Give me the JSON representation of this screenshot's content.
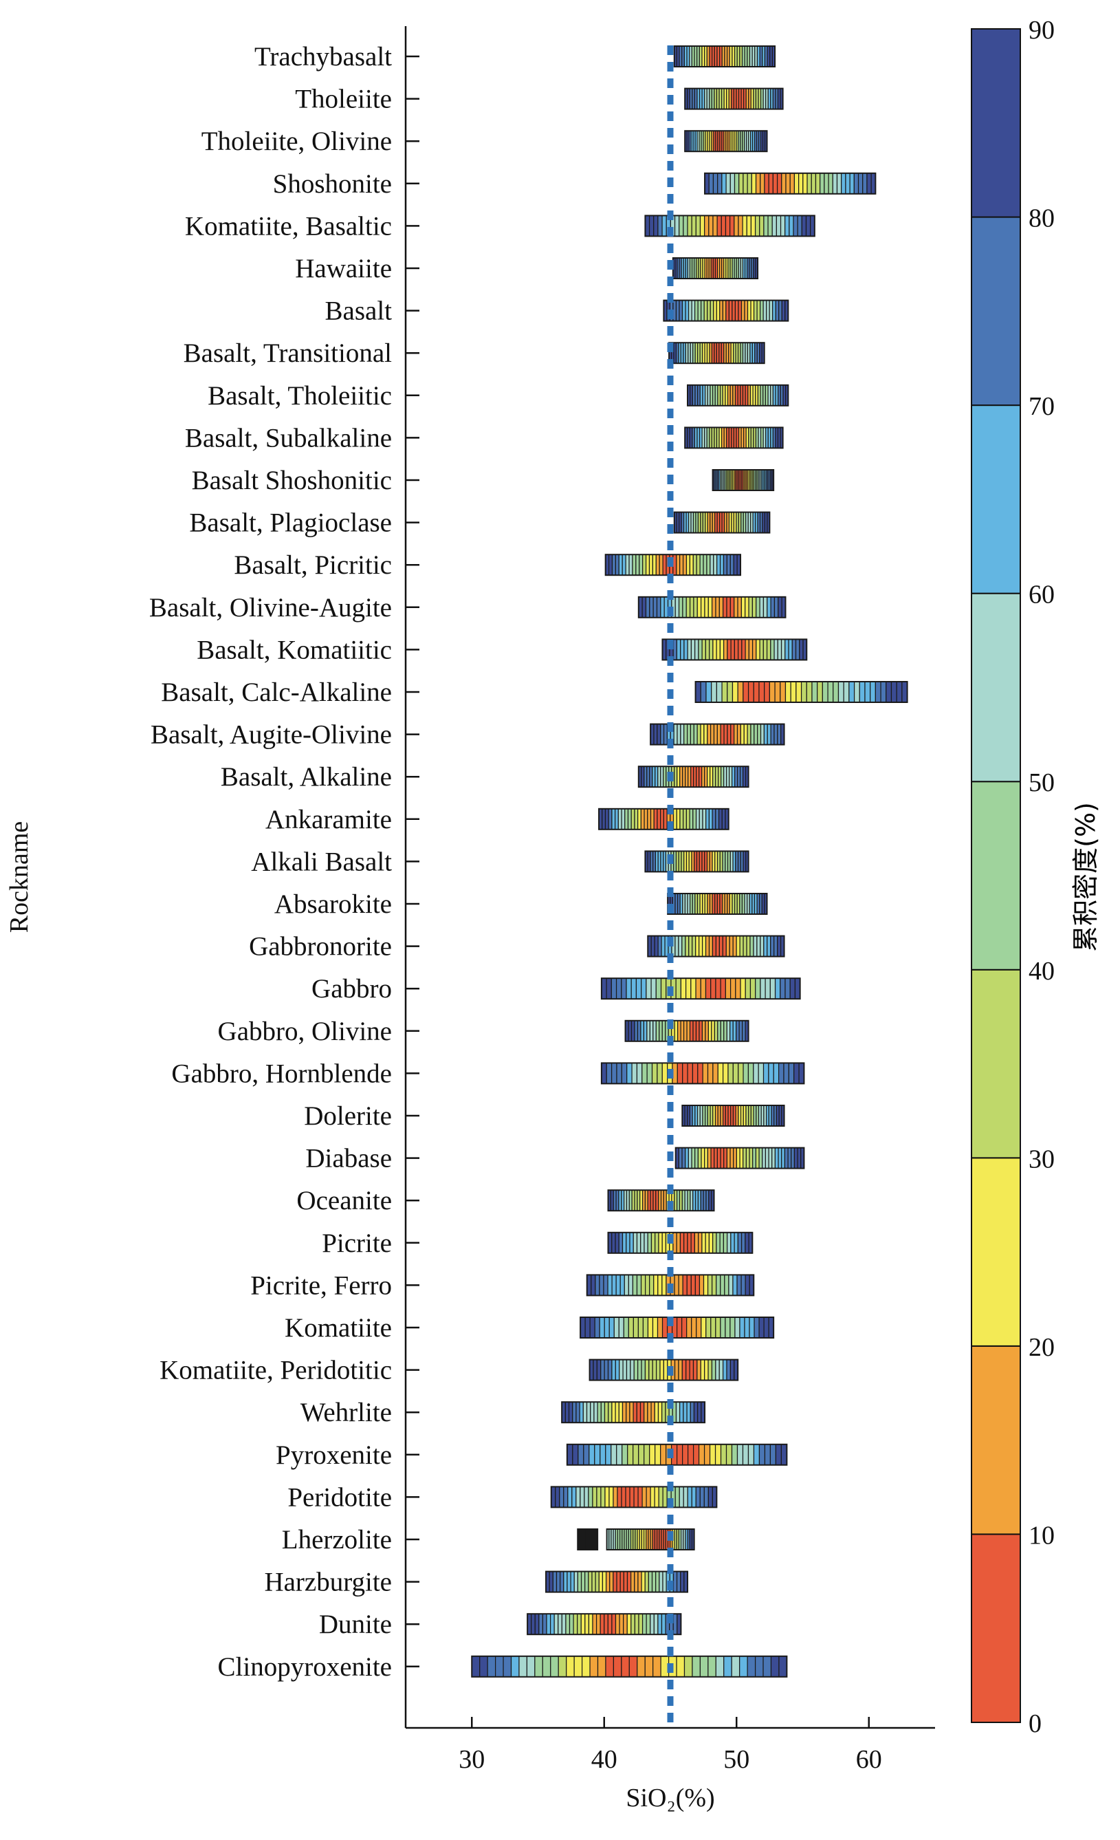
{
  "chart_data": {
    "type": "range-density",
    "xlabel": "SiO₂(%)",
    "ylabel": "Rockname",
    "colorbar_label": "累积密度(%)",
    "xlim": [
      25,
      65
    ],
    "x_ticks": [
      30,
      40,
      50,
      60
    ],
    "reference_line_x": 45,
    "colorbar_ticks": [
      0,
      10,
      20,
      30,
      40,
      50,
      60,
      70,
      80,
      90
    ],
    "colorbar_colors": [
      "#e85a3a",
      "#f2a33a",
      "#f3ea55",
      "#bfd86a",
      "#9fd39c",
      "#a8d8cf",
      "#63b6e2",
      "#4a76b5",
      "#3b4c94"
    ],
    "rows": [
      {
        "name": "Trachybasalt",
        "min": 45.3,
        "max": 52.9,
        "mode": 48.5
      },
      {
        "name": "Tholeiite",
        "min": 46.1,
        "max": 53.5,
        "mode": 50.3
      },
      {
        "name": "Tholeiite, Olivine",
        "min": 46.1,
        "max": 52.3,
        "mode": 48.6
      },
      {
        "name": "Shoshonite",
        "min": 47.6,
        "max": 60.5,
        "mode": 52.6
      },
      {
        "name": "Komatiite, Basaltic",
        "min": 43.1,
        "max": 55.9,
        "mode": 49.0
      },
      {
        "name": "Hawaiite",
        "min": 45.2,
        "max": 51.6,
        "mode": 48.3
      },
      {
        "name": "Basalt",
        "min": 44.5,
        "max": 53.9,
        "mode": 50.0
      },
      {
        "name": "Basalt, Transitional",
        "min": 44.9,
        "max": 52.1,
        "mode": 48.7
      },
      {
        "name": "Basalt, Tholeiitic",
        "min": 46.3,
        "max": 53.9,
        "mode": 50.3
      },
      {
        "name": "Basalt, Subalkaline",
        "min": 46.1,
        "max": 53.5,
        "mode": 49.7
      },
      {
        "name": "Basalt Shoshonitic",
        "min": 48.2,
        "max": 52.8,
        "mode": 50.2
      },
      {
        "name": "Basalt, Plagioclase",
        "min": 45.3,
        "max": 52.5,
        "mode": 48.6
      },
      {
        "name": "Basalt, Picritic",
        "min": 40.1,
        "max": 50.3,
        "mode": 44.9
      },
      {
        "name": "Basalt, Olivine-Augite",
        "min": 42.6,
        "max": 53.7,
        "mode": 49.5
      },
      {
        "name": "Basalt, Komatiitic",
        "min": 44.4,
        "max": 55.3,
        "mode": 50.2
      },
      {
        "name": "Basalt, Calc-Alkaline",
        "min": 46.9,
        "max": 62.9,
        "mode": 51.0
      },
      {
        "name": "Basalt, Augite-Olivine",
        "min": 43.5,
        "max": 53.6,
        "mode": 49.3
      },
      {
        "name": "Basalt, Alkaline",
        "min": 42.6,
        "max": 50.9,
        "mode": 46.9
      },
      {
        "name": "Ankaramite",
        "min": 39.6,
        "max": 49.4,
        "mode": 44.0
      },
      {
        "name": "Alkali Basalt",
        "min": 43.1,
        "max": 50.9,
        "mode": 47.4
      },
      {
        "name": "Absarokite",
        "min": 44.8,
        "max": 52.3,
        "mode": 48.6
      },
      {
        "name": "Gabbronorite",
        "min": 43.3,
        "max": 53.6,
        "mode": 48.8
      },
      {
        "name": "Gabbro",
        "min": 39.8,
        "max": 54.8,
        "mode": 48.7
      },
      {
        "name": "Gabbro, Olivine",
        "min": 41.6,
        "max": 50.9,
        "mode": 47.0
      },
      {
        "name": "Gabbro, Hornblende",
        "min": 39.8,
        "max": 55.1,
        "mode": 46.7
      },
      {
        "name": "Dolerite",
        "min": 45.9,
        "max": 53.6,
        "mode": 49.3
      },
      {
        "name": "Diabase",
        "min": 45.4,
        "max": 55.1,
        "mode": 48.4
      },
      {
        "name": "Oceanite",
        "min": 40.3,
        "max": 48.3,
        "mode": 43.7
      },
      {
        "name": "Picrite",
        "min": 40.3,
        "max": 51.2,
        "mode": 46.4
      },
      {
        "name": "Picrite, Ferro",
        "min": 38.7,
        "max": 51.3,
        "mode": 46.4
      },
      {
        "name": "Komatiite",
        "min": 38.2,
        "max": 52.8,
        "mode": 45.5
      },
      {
        "name": "Komatiite, Peridotitic",
        "min": 38.9,
        "max": 50.1,
        "mode": 46.6
      },
      {
        "name": "Wehrlite",
        "min": 36.8,
        "max": 47.6,
        "mode": 42.6
      },
      {
        "name": "Pyroxenite",
        "min": 37.2,
        "max": 53.8,
        "mode": 46.2
      },
      {
        "name": "Peridotite",
        "min": 36.0,
        "max": 48.5,
        "mode": 42.0
      },
      {
        "name": "Lherzolite",
        "min": 38.0,
        "max": 46.8,
        "mode": 44.7,
        "gap": [
          39.5,
          40.2
        ]
      },
      {
        "name": "Harzburgite",
        "min": 35.6,
        "max": 46.3,
        "mode": 41.5
      },
      {
        "name": "Dunite",
        "min": 34.2,
        "max": 45.8,
        "mode": 40.4
      },
      {
        "name": "Clinopyroxenite",
        "min": 30.0,
        "max": 53.8,
        "mode": 41.5
      }
    ]
  }
}
